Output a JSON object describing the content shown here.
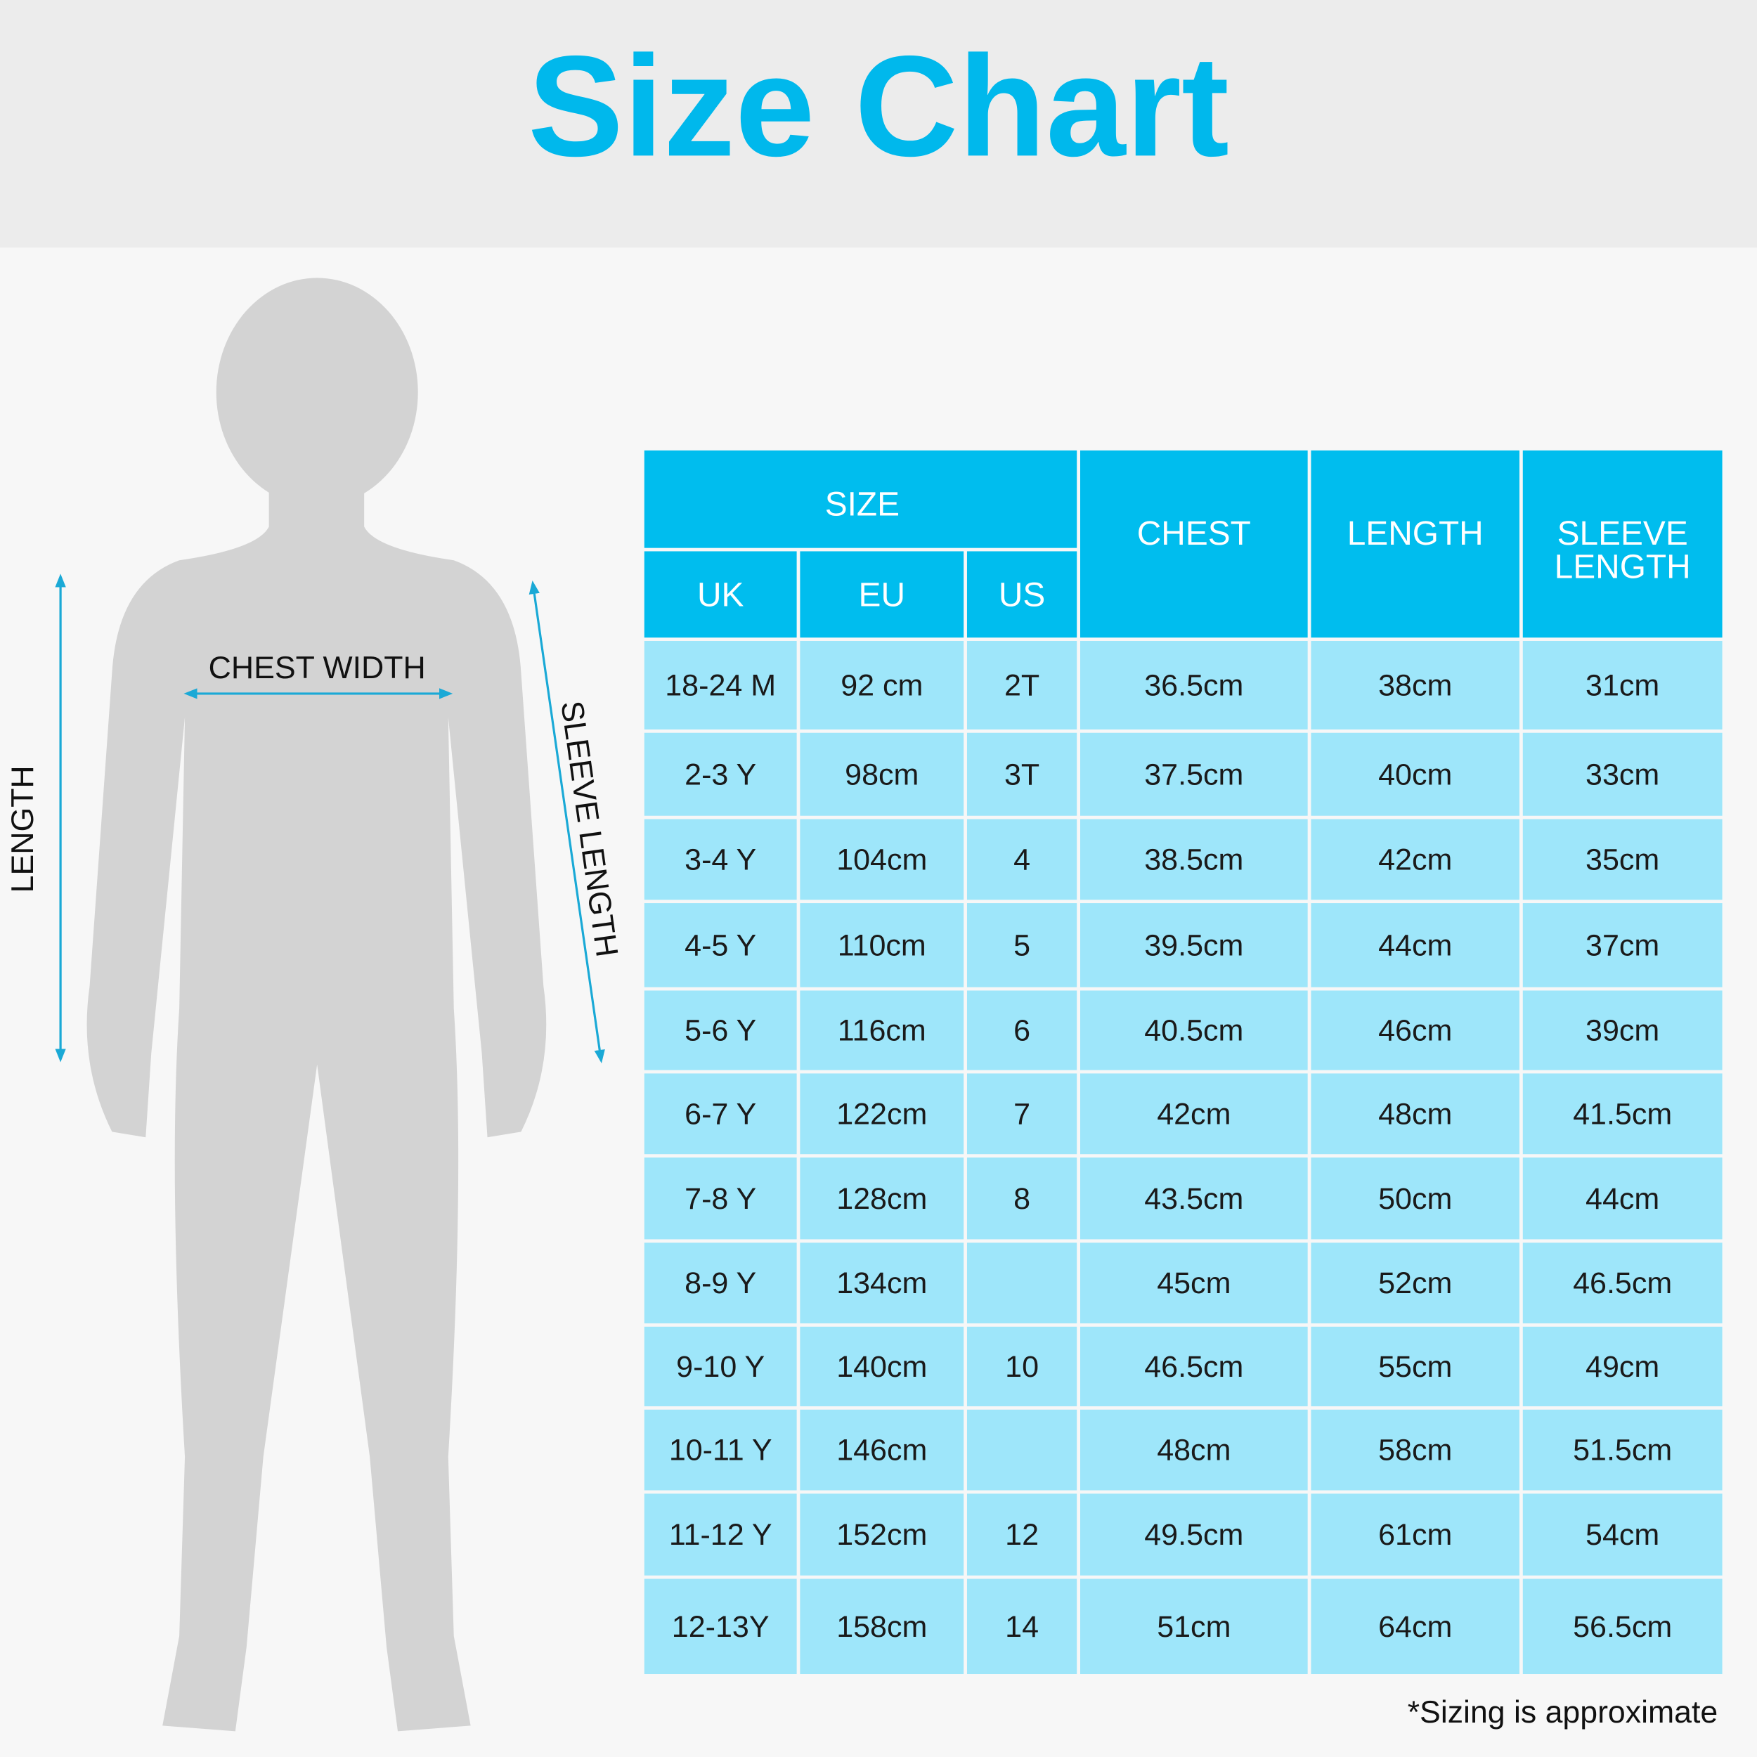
{
  "header": {
    "title": "Size Chart"
  },
  "figure": {
    "length_label": "LENGTH",
    "chest_label": "CHEST WIDTH",
    "sleeve_label": "SLEEVE LENGTH"
  },
  "table": {
    "header": {
      "size": "SIZE",
      "uk": "UK",
      "eu": "EU",
      "us": "US",
      "chest": "CHEST",
      "length": "LENGTH",
      "sleeve_length": [
        "SLEEVE",
        "LENGTH"
      ]
    },
    "rows": [
      [
        "18-24 M",
        "92 cm",
        "2T",
        "36.5cm",
        "38cm",
        "31cm"
      ],
      [
        "2-3 Y",
        "98cm",
        "3T",
        "37.5cm",
        "40cm",
        "33cm"
      ],
      [
        "3-4 Y",
        "104cm",
        "4",
        "38.5cm",
        "42cm",
        "35cm"
      ],
      [
        "4-5 Y",
        "110cm",
        "5",
        "39.5cm",
        "44cm",
        "37cm"
      ],
      [
        "5-6 Y",
        "116cm",
        "6",
        "40.5cm",
        "46cm",
        "39cm"
      ],
      [
        "6-7 Y",
        "122cm",
        "7",
        "42cm",
        "48cm",
        "41.5cm"
      ],
      [
        "7-8 Y",
        "128cm",
        "8",
        "43.5cm",
        "50cm",
        "44cm"
      ],
      [
        "8-9 Y",
        "134cm",
        null,
        "45cm",
        "52cm",
        "46.5cm"
      ],
      [
        "9-10 Y",
        "140cm",
        "10",
        "46.5cm",
        "55cm",
        "49cm"
      ],
      [
        "10-11 Y",
        "146cm",
        null,
        "48cm",
        "58cm",
        "51.5cm"
      ],
      [
        "11-12 Y",
        "152cm",
        "12",
        "49.5cm",
        "61cm",
        "54cm"
      ],
      [
        "12-13Y",
        "158cm",
        "14",
        "51cm",
        "64cm",
        "56.5cm"
      ]
    ]
  },
  "footnote": "*Sizing is approximate"
}
